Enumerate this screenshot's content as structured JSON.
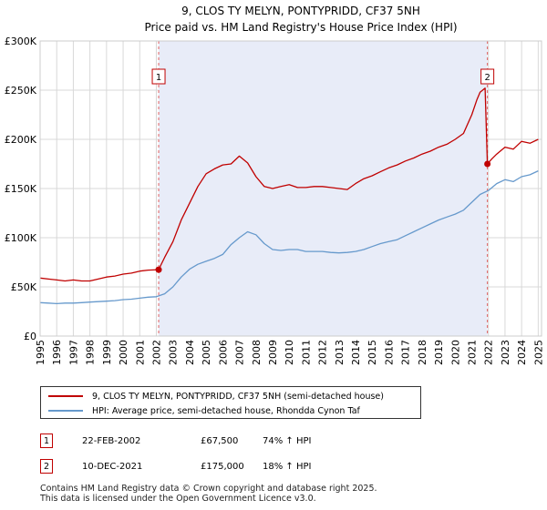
{
  "chart_data": {
    "type": "line",
    "title": "9, CLOS TY MELYN, PONTYPRIDD, CF37 5NH",
    "subtitle": "Price paid vs. HM Land Registry's House Price Index (HPI)",
    "xlabel": "",
    "ylabel": "",
    "xlim": [
      1995,
      2025.2
    ],
    "ylim": [
      0,
      300000
    ],
    "y_ticks": [
      0,
      50000,
      100000,
      150000,
      200000,
      250000,
      300000
    ],
    "y_tick_labels": [
      "£0",
      "£50K",
      "£100K",
      "£150K",
      "£200K",
      "£250K",
      "£300K"
    ],
    "x_ticks": [
      "1995",
      "1996",
      "1997",
      "1998",
      "1999",
      "2000",
      "2001",
      "2002",
      "2003",
      "2004",
      "2005",
      "2006",
      "2007",
      "2008",
      "2009",
      "2010",
      "2011",
      "2012",
      "2013",
      "2014",
      "2015",
      "2016",
      "2017",
      "2018",
      "2019",
      "2020",
      "2021",
      "2022",
      "2023",
      "2024",
      "2025"
    ],
    "grid": true,
    "shaded_range": [
      2002.14,
      2021.94
    ],
    "series": [
      {
        "name": "9, CLOS TY MELYN, PONTYPRIDD, CF37 5NH (semi-detached house)",
        "color": "#c00000",
        "x": [
          1995.0,
          1995.5,
          1996.0,
          1996.5,
          1997.0,
          1997.5,
          1998.0,
          1998.5,
          1999.0,
          1999.5,
          2000.0,
          2000.5,
          2001.0,
          2001.5,
          2002.14,
          2002.5,
          2003.0,
          2003.5,
          2004.0,
          2004.5,
          2005.0,
          2005.5,
          2006.0,
          2006.5,
          2007.0,
          2007.5,
          2008.0,
          2008.5,
          2009.0,
          2009.5,
          2010.0,
          2010.5,
          2011.0,
          2011.5,
          2012.0,
          2012.5,
          2013.0,
          2013.5,
          2014.0,
          2014.5,
          2015.0,
          2015.5,
          2016.0,
          2016.5,
          2017.0,
          2017.5,
          2018.0,
          2018.5,
          2019.0,
          2019.5,
          2020.0,
          2020.5,
          2021.0,
          2021.3,
          2021.5,
          2021.8,
          2021.94,
          2022.2,
          2022.5,
          2023.0,
          2023.5,
          2024.0,
          2024.5,
          2025.0
        ],
        "values": [
          59000,
          58000,
          57000,
          56000,
          57000,
          56000,
          56000,
          58000,
          60000,
          61000,
          63000,
          64000,
          66000,
          67000,
          67500,
          80000,
          96000,
          118000,
          135000,
          152000,
          165000,
          170000,
          174000,
          175000,
          183000,
          176000,
          162000,
          152000,
          150000,
          152000,
          154000,
          151000,
          151000,
          152000,
          152000,
          151000,
          150000,
          149000,
          155000,
          160000,
          163000,
          167000,
          171000,
          174000,
          178000,
          181000,
          185000,
          188000,
          192000,
          195000,
          200000,
          206000,
          225000,
          240000,
          248000,
          252000,
          175000,
          180000,
          185000,
          192000,
          190000,
          198000,
          196000,
          200000
        ]
      },
      {
        "name": "HPI: Average price, semi-detached house, Rhondda Cynon Taf",
        "color": "#6699cc",
        "x": [
          1995.0,
          1995.5,
          1996.0,
          1996.5,
          1997.0,
          1997.5,
          1998.0,
          1998.5,
          1999.0,
          1999.5,
          2000.0,
          2000.5,
          2001.0,
          2001.5,
          2002.0,
          2002.5,
          2003.0,
          2003.5,
          2004.0,
          2004.5,
          2005.0,
          2005.5,
          2006.0,
          2006.5,
          2007.0,
          2007.5,
          2008.0,
          2008.5,
          2009.0,
          2009.5,
          2010.0,
          2010.5,
          2011.0,
          2011.5,
          2012.0,
          2012.5,
          2013.0,
          2013.5,
          2014.0,
          2014.5,
          2015.0,
          2015.5,
          2016.0,
          2016.5,
          2017.0,
          2017.5,
          2018.0,
          2018.5,
          2019.0,
          2019.5,
          2020.0,
          2020.5,
          2021.0,
          2021.5,
          2022.0,
          2022.5,
          2023.0,
          2023.5,
          2024.0,
          2024.5,
          2025.0
        ],
        "values": [
          34000,
          33500,
          33000,
          33500,
          33500,
          34000,
          34500,
          35000,
          35500,
          36000,
          37000,
          37500,
          38500,
          39500,
          40000,
          43000,
          50000,
          60000,
          68000,
          73000,
          76000,
          79000,
          83000,
          93000,
          100000,
          106000,
          103000,
          94000,
          88000,
          87000,
          88000,
          88000,
          86000,
          86000,
          86000,
          85000,
          84500,
          85000,
          86000,
          88000,
          91000,
          94000,
          96000,
          98000,
          102000,
          106000,
          110000,
          114000,
          118000,
          121000,
          124000,
          128000,
          136000,
          144000,
          148000,
          155000,
          159000,
          157000,
          162000,
          164000,
          168000
        ]
      }
    ],
    "sales": [
      {
        "label": "1",
        "x": 2002.14,
        "value": 67500
      },
      {
        "label": "2",
        "x": 2021.94,
        "value": 175000
      }
    ]
  },
  "legend": {
    "red_label": "9, CLOS TY MELYN, PONTYPRIDD, CF37 5NH (semi-detached house)",
    "blue_label": "HPI: Average price, semi-detached house, Rhondda Cynon Taf"
  },
  "transactions": [
    {
      "num": "1",
      "date": "22-FEB-2002",
      "price": "£67,500",
      "hpi": "74% ↑ HPI"
    },
    {
      "num": "2",
      "date": "10-DEC-2021",
      "price": "£175,000",
      "hpi": "18% ↑ HPI"
    }
  ],
  "footer": {
    "line1": "Contains HM Land Registry data © Crown copyright and database right 2025.",
    "line2": "This data is licensed under the Open Government Licence v3.0."
  }
}
